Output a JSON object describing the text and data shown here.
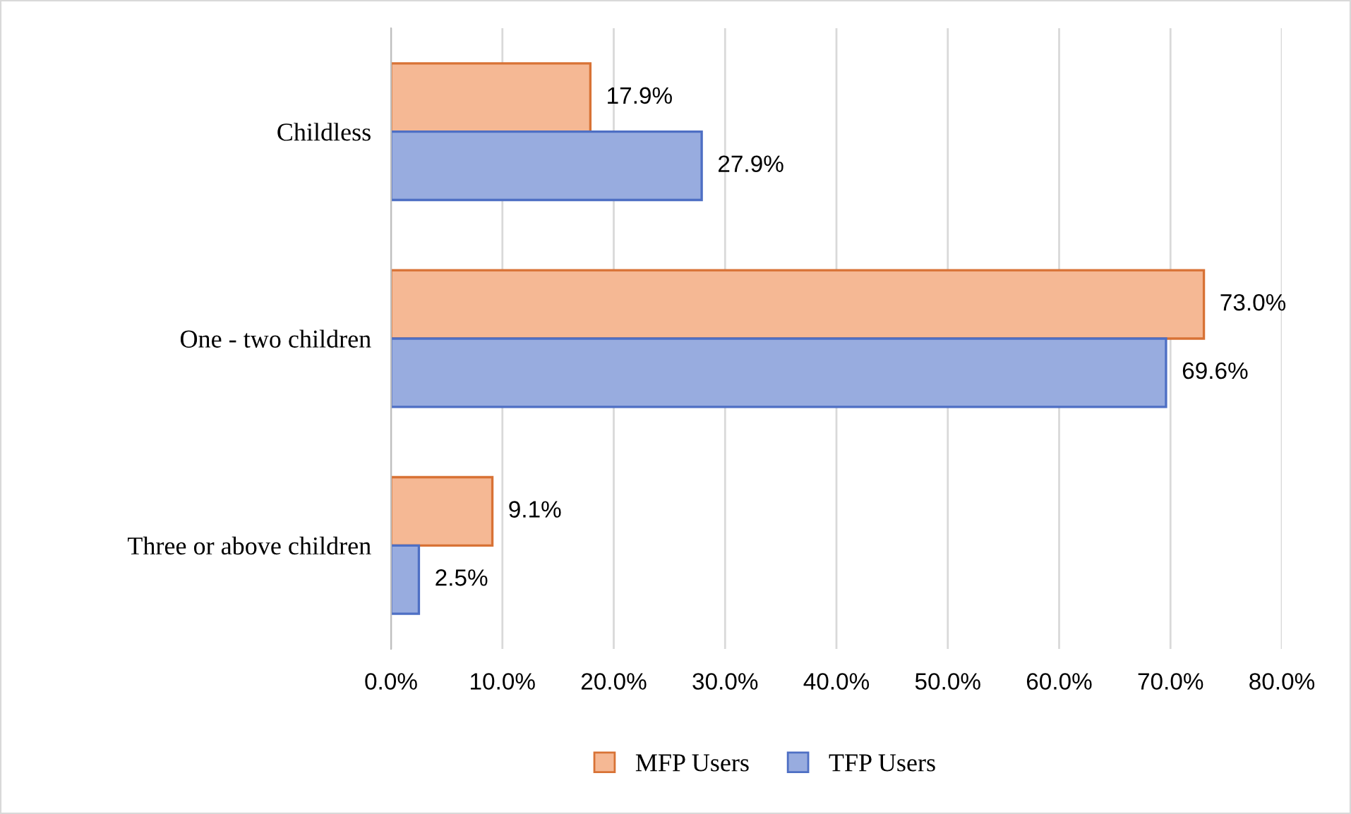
{
  "chart_data": {
    "type": "bar",
    "orientation": "horizontal",
    "categories": [
      "Childless",
      "One - two children",
      "Three or above children"
    ],
    "series": [
      {
        "name": "MFP Users",
        "color": "#f5b894",
        "values": [
          17.9,
          73.0,
          9.1
        ],
        "value_labels": [
          "17.9%",
          "73.0%",
          "9.1%"
        ]
      },
      {
        "name": "TFP Users",
        "color": "#98acdf",
        "values": [
          27.9,
          69.6,
          2.5
        ],
        "value_labels": [
          "27.9%",
          "69.6%",
          "2.5%"
        ]
      }
    ],
    "xlim": [
      0,
      80
    ],
    "xticks": [
      {
        "value": 0,
        "label": "0.0%"
      },
      {
        "value": 10,
        "label": "10.0%"
      },
      {
        "value": 20,
        "label": "20.0%"
      },
      {
        "value": 30,
        "label": "30.0%"
      },
      {
        "value": 40,
        "label": "40.0%"
      },
      {
        "value": 50,
        "label": "50.0%"
      },
      {
        "value": 60,
        "label": "60.0%"
      },
      {
        "value": 70,
        "label": "70.0%"
      },
      {
        "value": 80,
        "label": "80.0%"
      }
    ],
    "grid": "x",
    "legend": "bottom"
  }
}
